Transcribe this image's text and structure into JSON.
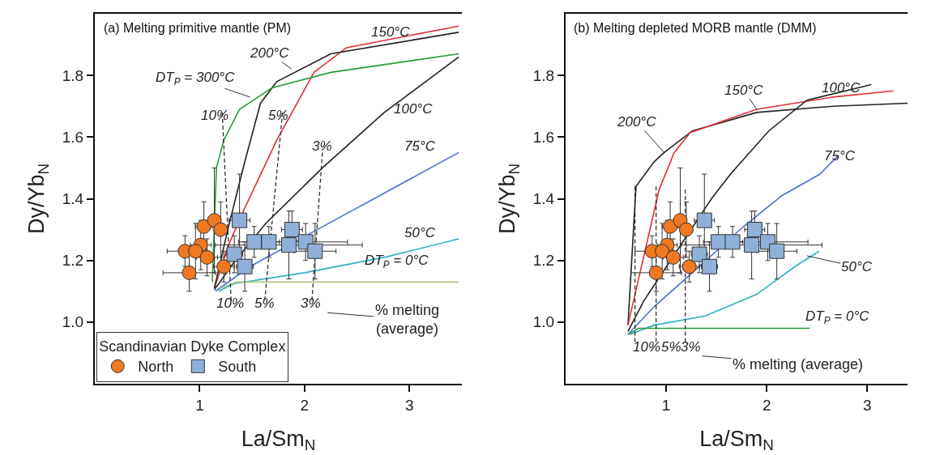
{
  "chart_data": [
    {
      "type": "line",
      "title": "(a) Melting primitive mantle (PM)",
      "xlabel": "La/Sm$_{N}$",
      "ylabel": "Dy/Yb$_{N}$",
      "xlim": [
        0,
        3.5
      ],
      "ylim": [
        0.8,
        2.0
      ],
      "xticks": [
        1,
        2,
        3
      ],
      "yticks": [
        {
          "value": 1,
          "label": "1.0"
        },
        1.2,
        1.4,
        1.6,
        1.8
      ],
      "legend": "bottom left",
      "legend_title": "Scandinavian Dyke Complex",
      "series": [
        {
          "color": "#e0303a",
          "x": [
            1.14,
            1.275,
            1.43,
            1.735,
            2.09,
            2.4,
            3.47
          ],
          "values": [
            1.11,
            1.25,
            1.37,
            1.59,
            1.81,
            1.89,
            1.96
          ]
        },
        {
          "color": "#222222",
          "x": [
            1.14,
            1.275,
            1.43,
            1.58,
            1.735,
            2.25,
            3.47
          ],
          "values": [
            1.11,
            1.31,
            1.52,
            1.71,
            1.78,
            1.87,
            1.94
          ]
        },
        {
          "color": "#2a9a3a",
          "x": [
            1.12,
            1.16,
            1.23,
            1.38,
            1.69,
            2.25,
            3.47
          ],
          "values": [
            1.13,
            1.5,
            1.59,
            1.69,
            1.76,
            1.81,
            1.87
          ]
        },
        {
          "color": "#222222",
          "x": [
            1.14,
            1.33,
            1.63,
            2.17,
            2.76,
            3.47
          ],
          "values": [
            1.105,
            1.195,
            1.32,
            1.5,
            1.68,
            1.86
          ]
        },
        {
          "color": "#4a70d0",
          "x": [
            1.15,
            1.48,
            2.12,
            2.5,
            3.47
          ],
          "values": [
            1.1,
            1.18,
            1.3,
            1.37,
            1.55
          ]
        },
        {
          "color": "#30b0c0",
          "x": [
            1.18,
            1.33,
            2.0,
            2.76,
            3.47
          ],
          "values": [
            1.1,
            1.125,
            1.16,
            1.21,
            1.27
          ]
        },
        {
          "color": "#b0c880",
          "x": [
            1.2,
            1.35,
            3.47
          ],
          "values": [
            1.11,
            1.13,
            1.13
          ]
        },
        {
          "color": "#222222",
          "line_style": "dashed",
          "x": [
            1.215,
            1.3
          ],
          "values": [
            1.68,
            1.07
          ]
        },
        {
          "color": "#222222",
          "line_style": "dashed",
          "x": [
            1.79,
            1.62
          ],
          "values": [
            1.68,
            1.07
          ]
        },
        {
          "color": "#222222",
          "line_style": "dashed",
          "x": [
            2.17,
            2.07
          ],
          "values": [
            1.55,
            1.07
          ]
        },
        {
          "type": "scatter",
          "name": "North",
          "color": "#f07820",
          "marker": "circle",
          "x": [
            1.04,
            1.14,
            1.2,
            1.01,
            0.86,
            0.96,
            1.07,
            0.9,
            1.23
          ],
          "values": [
            1.31,
            1.33,
            1.3,
            1.25,
            1.23,
            1.23,
            1.21,
            1.16,
            1.18
          ],
          "errors": [
            0.08,
            0.17,
            0.09,
            0.08,
            0.05,
            0.09,
            0.06,
            0.06,
            0.05
          ],
          "xerrors": [
            0.08,
            0.06,
            0.06,
            0.1,
            0.17,
            0.1,
            0.1,
            0.25,
            0.1
          ]
        },
        {
          "type": "scatter",
          "name": "South",
          "color": "#8fb0d8",
          "marker": "square",
          "x": [
            1.38,
            1.52,
            1.66,
            1.88,
            1.85,
            2.01,
            2.1,
            1.33,
            1.43
          ],
          "values": [
            1.33,
            1.26,
            1.26,
            1.3,
            1.25,
            1.26,
            1.23,
            1.22,
            1.18
          ],
          "errors": [
            0.15,
            0.05,
            0.05,
            0.06,
            0.11,
            0.06,
            0.09,
            0.06,
            0.08
          ],
          "xerrors": [
            0.1,
            0.15,
            0.1,
            0.1,
            0.7,
            0.4,
            0.2,
            0.08,
            0.08
          ]
        }
      ],
      "annotations": [
        "150°C",
        {
          "text": "200°C",
          "x": 1.88,
          "y": 1.82
        },
        {
          "text": "DT$_{P}$ = 300°C",
          "x": 1.48,
          "y": 1.73
        },
        "100°C",
        "75°C",
        "50°C",
        "DT$_{P}$ = 0°C",
        "10%",
        "5%",
        "3%",
        "10%",
        "5%",
        "3%",
        "% melting\n(average)"
      ]
    },
    {
      "type": "line",
      "title": "(b) Melting depleted MORB mantle (DMM)",
      "xlabel": "La/Sm$_{N}$",
      "ylabel": "Dy/Yb$_{N}$",
      "xlim": [
        0,
        3.4
      ],
      "ylim": [
        0.8,
        2.0
      ],
      "xticks": [
        1,
        2,
        3
      ],
      "yticks": [
        {
          "value": 1,
          "label": "1.0"
        },
        1.2,
        1.4,
        1.6,
        1.8
      ],
      "series": [
        {
          "color": "#222222",
          "x": [
            0.62,
            0.7,
            0.88,
            0.98,
            1.26,
            1.9,
            2.66,
            3.4
          ],
          "values": [
            0.99,
            1.44,
            1.52,
            1.55,
            1.62,
            1.68,
            1.7,
            1.71
          ]
        },
        {
          "color": "#e0303a",
          "x": [
            0.62,
            0.93,
            1.08,
            1.24,
            1.9,
            2.66,
            3.26
          ],
          "values": [
            0.99,
            1.43,
            1.55,
            1.615,
            1.69,
            1.73,
            1.75
          ]
        },
        {
          "color": "#222222",
          "x": [
            0.62,
            0.78,
            1.45,
            1.64,
            2.02,
            2.4,
            3.04
          ],
          "values": [
            0.97,
            1.07,
            1.4,
            1.48,
            1.62,
            1.72,
            1.77
          ]
        },
        {
          "color": "#4a70d0",
          "x": [
            0.62,
            0.88,
            1.26,
            1.77,
            2.15,
            2.53,
            2.71
          ],
          "values": [
            0.96,
            1.05,
            1.16,
            1.31,
            1.41,
            1.48,
            1.54
          ]
        },
        {
          "color": "#30b0c0",
          "x": [
            0.64,
            0.88,
            1.39,
            1.9,
            2.28,
            2.52
          ],
          "values": [
            0.96,
            0.99,
            1.02,
            1.09,
            1.18,
            1.23
          ]
        },
        {
          "color": "#2a9a3a",
          "x": [
            0.62,
            0.725,
            2.43
          ],
          "values": [
            0.96,
            0.98,
            0.98
          ]
        },
        {
          "color": "#222222",
          "line_style": "dashed",
          "x": [
            0.69,
            0.69
          ],
          "values": [
            1.44,
            0.935
          ]
        },
        {
          "color": "#222222",
          "line_style": "dashed",
          "x": [
            0.9,
            0.9
          ],
          "values": [
            1.44,
            0.935
          ]
        },
        {
          "color": "#222222",
          "line_style": "dashed",
          "x": [
            1.19,
            1.19
          ],
          "values": [
            1.43,
            0.935
          ]
        },
        {
          "type": "scatter",
          "color": "#f07820",
          "marker": "circle",
          "x": [
            1.04,
            1.14,
            1.2,
            1.01,
            0.86,
            0.96,
            1.07,
            0.9,
            1.23
          ],
          "values": [
            1.31,
            1.33,
            1.3,
            1.25,
            1.23,
            1.23,
            1.21,
            1.16,
            1.18
          ],
          "errors": [
            0.08,
            0.17,
            0.09,
            0.08,
            0.05,
            0.09,
            0.06,
            0.06,
            0.05
          ],
          "xerrors": [
            0.08,
            0.06,
            0.06,
            0.1,
            0.17,
            0.1,
            0.1,
            0.25,
            0.1
          ]
        },
        {
          "type": "scatter",
          "color": "#8fb0d8",
          "marker": "square",
          "x": [
            1.38,
            1.52,
            1.66,
            1.88,
            1.85,
            2.01,
            2.1,
            1.33,
            1.43
          ],
          "values": [
            1.33,
            1.26,
            1.26,
            1.3,
            1.25,
            1.26,
            1.23,
            1.22,
            1.18
          ],
          "errors": [
            0.15,
            0.05,
            0.05,
            0.06,
            0.11,
            0.06,
            0.09,
            0.06,
            0.08
          ],
          "xerrors": [
            0.1,
            0.15,
            0.1,
            0.1,
            0.7,
            0.4,
            0.2,
            0.08,
            0.08
          ]
        }
      ],
      "annotations": [
        {
          "text": "200°C",
          "x": 0.98,
          "y": 1.55
        },
        {
          "text": "150°C",
          "x": 1.9,
          "y": 1.69
        },
        "100°C",
        "75°C",
        {
          "text": "50°C",
          "x": 2.4,
          "y": 1.215
        },
        "DT$_{P}$ = 0°C",
        "10%",
        "5%",
        "3%",
        "% melting (average)"
      ]
    }
  ]
}
